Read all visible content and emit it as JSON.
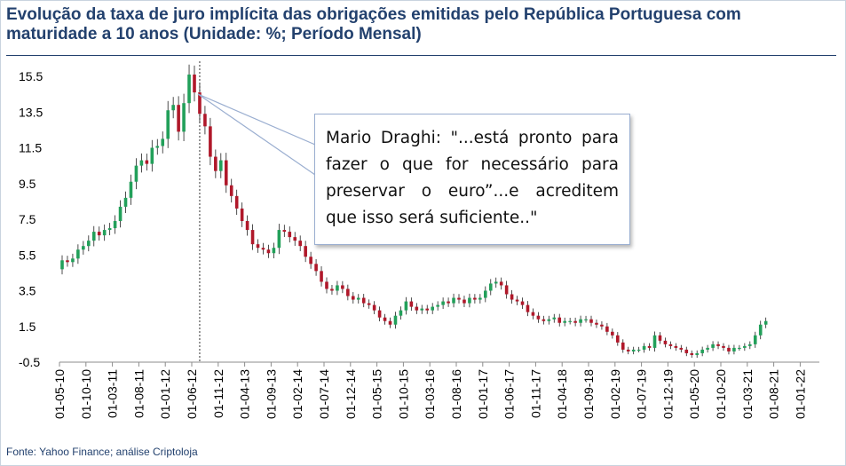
{
  "header": {
    "title": "Evolução da taxa de juro implícita das obrigações emitidas pelo República Portuguesa com maturidade a 10 anos (Unidade: %; Período Mensal)"
  },
  "footer": {
    "source": "Fonte: Yahoo Finance; análise Criptoloja"
  },
  "annotation": {
    "text": "Mario Draghi: \"...está pronto para fazer o que for necessário para preservar o euro”...e acreditem que isso será suficiente..\"",
    "points_to_date": "2012-07"
  },
  "colors": {
    "up": "#22a05a",
    "down": "#b0182a",
    "wick": "#222222",
    "axis_text": "#000000",
    "title": "#23416e",
    "callout_border": "#9aaed0"
  },
  "chart_data": {
    "type": "candlestick",
    "title": "",
    "xlabel": "",
    "ylabel": "",
    "ylim": [
      -0.5,
      15.5
    ],
    "y_ticks": [
      "-0.5",
      "1.5",
      "3.5",
      "5.5",
      "7.5",
      "9.5",
      "11.5",
      "13.5",
      "15.5"
    ],
    "x_ticks": [
      "01-05-10",
      "01-10-10",
      "01-03-11",
      "01-08-11",
      "01-01-12",
      "01-06-12",
      "01-11-12",
      "01-04-13",
      "01-09-13",
      "01-02-14",
      "01-07-14",
      "01-12-14",
      "01-05-15",
      "01-10-15",
      "01-03-16",
      "01-08-16",
      "01-01-17",
      "01-06-17",
      "01-11-17",
      "01-04-18",
      "01-09-18",
      "01-02-19",
      "01-07-19",
      "01-12-19",
      "01-05-20",
      "01-10-20",
      "01-03-21",
      "01-08-21",
      "01-01-22"
    ],
    "x_start": "2010-05",
    "grid": false,
    "legend": "none",
    "close_by_month": [
      5.2,
      5.1,
      5.3,
      5.8,
      6.0,
      6.3,
      6.8,
      6.6,
      6.9,
      7.0,
      7.4,
      8.2,
      8.7,
      9.6,
      10.5,
      10.8,
      10.6,
      11.5,
      11.6,
      12.0,
      13.6,
      13.9,
      12.4,
      14.0,
      15.6,
      14.6,
      13.4,
      12.7,
      11.0,
      10.2,
      10.8,
      9.4,
      8.8,
      8.1,
      7.4,
      6.9,
      6.1,
      5.9,
      5.8,
      5.6,
      5.9,
      6.9,
      6.8,
      6.5,
      6.3,
      6.0,
      5.4,
      5.0,
      4.6,
      4.0,
      3.6,
      3.5,
      3.8,
      3.6,
      3.2,
      3.0,
      3.1,
      2.8,
      2.7,
      2.4,
      2.0,
      1.8,
      1.6,
      2.1,
      2.4,
      2.9,
      2.6,
      2.4,
      2.5,
      2.4,
      2.6,
      2.7,
      2.9,
      2.8,
      3.1,
      3.0,
      2.8,
      3.1,
      3.0,
      3.1,
      3.5,
      3.9,
      4.0,
      3.8,
      3.3,
      3.0,
      2.9,
      2.7,
      2.3,
      2.1,
      1.9,
      1.8,
      1.9,
      2.0,
      1.7,
      1.8,
      1.8,
      1.7,
      1.9,
      1.9,
      1.7,
      1.6,
      1.5,
      1.2,
      1.0,
      0.6,
      0.2,
      0.1,
      0.2,
      0.2,
      0.4,
      0.3,
      1.0,
      0.7,
      0.5,
      0.4,
      0.3,
      0.2,
      0.0,
      -0.1,
      0.0,
      0.2,
      0.3,
      0.5,
      0.4,
      0.3,
      0.1,
      0.3,
      0.3,
      0.4,
      0.5,
      1.0,
      1.6,
      1.8
    ]
  }
}
